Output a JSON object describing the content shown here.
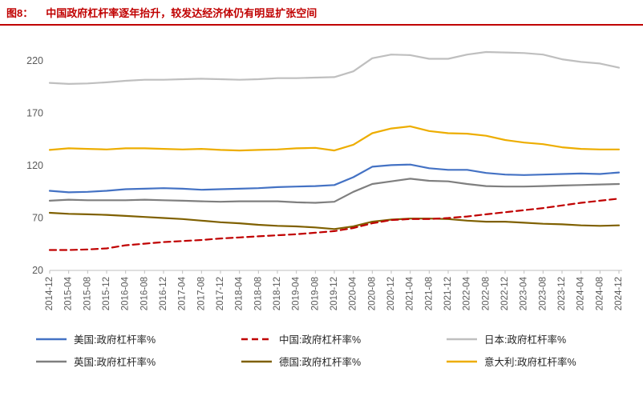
{
  "header": {
    "title_prefix": "图8：",
    "title_text": "中国政府杠杆率逐年抬升，较发达经济体仍有明显扩张空间",
    "title_color": "#C00000",
    "rule_color": "#C00000"
  },
  "chart_data": {
    "type": "line",
    "title": "",
    "xlabel": "",
    "ylabel": "",
    "unit": "%",
    "grid": false,
    "legend_position": "bottom",
    "ylim": [
      20,
      230
    ],
    "yticks": [
      20,
      70,
      120,
      170,
      220
    ],
    "categories": [
      "2014-12",
      "2015-04",
      "2015-08",
      "2015-12",
      "2016-04",
      "2016-08",
      "2016-12",
      "2017-04",
      "2017-08",
      "2017-12",
      "2018-04",
      "2018-08",
      "2018-12",
      "2019-04",
      "2019-08",
      "2019-12",
      "2020-04",
      "2020-08",
      "2020-12",
      "2021-04",
      "2021-08",
      "2021-12",
      "2022-04",
      "2022-08",
      "2022-12",
      "2023-04",
      "2023-08",
      "2023-12",
      "2024-04",
      "2024-08",
      "2024-12"
    ],
    "series": [
      {
        "key": "us",
        "name": "美国:政府杠杆率%",
        "color": "#4472C4",
        "dash": null,
        "values": [
          96,
          94.5,
          95,
          96,
          97.5,
          98,
          98.5,
          98,
          97,
          97.5,
          98,
          98.5,
          99.5,
          100,
          100.5,
          101.5,
          109,
          119,
          120.5,
          121,
          117.5,
          116,
          116,
          113,
          111.5,
          111,
          111.5,
          112,
          112.5,
          112,
          113.5
        ]
      },
      {
        "key": "china",
        "name": "中国:政府杠杆率%",
        "color": "#C00000",
        "dash": "8 5",
        "values": [
          39.5,
          39.5,
          40,
          41,
          44,
          45.5,
          47,
          48,
          49,
          50.5,
          51.5,
          52.5,
          53.5,
          54.5,
          56,
          57.5,
          60.5,
          65,
          68,
          69,
          69,
          70,
          71.5,
          73.5,
          75.5,
          77.5,
          79.5,
          82,
          84.5,
          86.5,
          88.5
        ]
      },
      {
        "key": "japan",
        "name": "日本:政府杠杆率%",
        "color": "#BFBFBF",
        "dash": null,
        "values": [
          199,
          198,
          198.5,
          199.5,
          201,
          202,
          202,
          202.5,
          203,
          202.5,
          202,
          202.5,
          203.5,
          203.5,
          204,
          204.5,
          210,
          222.5,
          226,
          225.5,
          222,
          222,
          226,
          228.5,
          228,
          227.5,
          226,
          221.5,
          219,
          217.5,
          213.5
        ]
      },
      {
        "key": "uk",
        "name": "英国:政府杠杆率%",
        "color": "#7F7F7F",
        "dash": null,
        "values": [
          86.5,
          87.5,
          87,
          87,
          87,
          87.5,
          87,
          86.5,
          86,
          85.5,
          86,
          86,
          86,
          85,
          84.5,
          85.5,
          95,
          102.5,
          105,
          107.5,
          105.5,
          105,
          102.5,
          100.5,
          100,
          100,
          100.5,
          101,
          101.5,
          102,
          102.5
        ]
      },
      {
        "key": "germany",
        "name": "德国:政府杠杆率%",
        "color": "#7F6000",
        "dash": null,
        "values": [
          75,
          74,
          73.5,
          73,
          72,
          71,
          70,
          69,
          67.5,
          66,
          65,
          63.5,
          62.5,
          62,
          61,
          59.5,
          62,
          66.5,
          68.5,
          69.5,
          69.5,
          69,
          67.5,
          66.5,
          66.5,
          65.5,
          64.5,
          64,
          63,
          62.5,
          63
        ]
      },
      {
        "key": "italy",
        "name": "意大利:政府杠杆率%",
        "color": "#EDAD00",
        "dash": null,
        "values": [
          135,
          136.5,
          136,
          135.5,
          136.5,
          136.5,
          136,
          135.5,
          136,
          135,
          134.5,
          135,
          135.5,
          136.5,
          137,
          134.5,
          140,
          151,
          155.5,
          157.5,
          153,
          151,
          150.5,
          148.5,
          144.5,
          142,
          140.5,
          137.5,
          136,
          135.5,
          135.5
        ]
      }
    ]
  }
}
